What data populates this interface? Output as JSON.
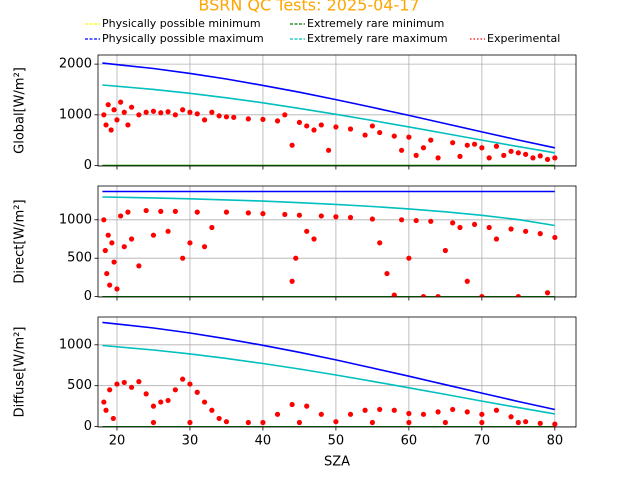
{
  "title": "BSRN QC Tests: 2025-04-17",
  "chart_data": [
    {
      "type": "scatter",
      "ylabel": "Global[W/m²]",
      "xlim": [
        17.4,
        82.9
      ],
      "xticks": [
        20,
        30,
        40,
        50,
        60,
        70,
        80
      ],
      "ylim": [
        -10,
        2180
      ],
      "yticks": [
        0,
        1000,
        2000
      ],
      "grid": true,
      "x": [
        18,
        25,
        30,
        35,
        40,
        45,
        50,
        55,
        60,
        65,
        70,
        75,
        80
      ],
      "series": [
        {
          "name": "Physically possible minimum",
          "color": "#ffff00",
          "values": [
            -4,
            -4,
            -4,
            -4,
            -4,
            -4,
            -4,
            -4,
            -4,
            -4,
            -4,
            -4,
            -4
          ]
        },
        {
          "name": "Physically possible maximum",
          "color": "#0000ff",
          "values": [
            2021,
            1913,
            1817,
            1706,
            1581,
            1446,
            1300,
            1147,
            988,
            826,
            663,
            503,
            349
          ]
        },
        {
          "name": "Extremely rare minimum",
          "color": "#008000",
          "values": [
            -2,
            -2,
            -2,
            -2,
            -2,
            -2,
            -2,
            -2,
            -2,
            -2,
            -2,
            -2,
            -2
          ]
        },
        {
          "name": "Extremely rare maximum",
          "color": "#00bfbf",
          "values": [
            1588,
            1501,
            1424,
            1335,
            1236,
            1127,
            1011,
            888,
            761,
            631,
            501,
            373,
            250
          ]
        },
        {
          "name": "Experimental",
          "color": "#ff0000",
          "marker": "o",
          "x": [
            18.2,
            18.5,
            18.8,
            19.2,
            19.6,
            20,
            20.5,
            21,
            21.5,
            22,
            23,
            24,
            25,
            26,
            27,
            28,
            29,
            30,
            31,
            32,
            33,
            34,
            35,
            36,
            38,
            40,
            42,
            43,
            44,
            45,
            46,
            47,
            48,
            49,
            50,
            52,
            54,
            55,
            56,
            58,
            59,
            60,
            61,
            62,
            63,
            64,
            66,
            67,
            68,
            69,
            70,
            71,
            72,
            73,
            74,
            75,
            76,
            77,
            78,
            79,
            80
          ],
          "values": [
            1000,
            800,
            1200,
            700,
            1100,
            900,
            1250,
            1050,
            800,
            1150,
            1000,
            1050,
            1070,
            1040,
            1060,
            1000,
            1100,
            1050,
            1020,
            900,
            1050,
            980,
            960,
            950,
            920,
            910,
            880,
            1000,
            400,
            850,
            780,
            700,
            800,
            300,
            760,
            720,
            600,
            780,
            650,
            580,
            300,
            560,
            200,
            350,
            500,
            150,
            450,
            180,
            400,
            420,
            350,
            150,
            380,
            200,
            280,
            250,
            220,
            150,
            190,
            120,
            150
          ]
        }
      ]
    },
    {
      "type": "scatter",
      "ylabel": "Direct[W/m²]",
      "xlim": [
        17.4,
        82.9
      ],
      "xticks": [
        20,
        30,
        40,
        50,
        60,
        70,
        80
      ],
      "ylim": [
        -5,
        1440
      ],
      "yticks": [
        0,
        500,
        1000
      ],
      "grid": true,
      "x": [
        18,
        25,
        30,
        35,
        40,
        45,
        50,
        55,
        60,
        65,
        70,
        75,
        80
      ],
      "series": [
        {
          "name": "Physically possible minimum",
          "color": "#ffff00",
          "values": [
            -4,
            -4,
            -4,
            -4,
            -4,
            -4,
            -4,
            -4,
            -4,
            -4,
            -4,
            -4,
            -4
          ]
        },
        {
          "name": "Physically possible maximum",
          "color": "#0000ff",
          "values": [
            1368,
            1368,
            1368,
            1368,
            1368,
            1368,
            1368,
            1368,
            1368,
            1368,
            1368,
            1368,
            1368
          ]
        },
        {
          "name": "Extremely rare minimum",
          "color": "#008000",
          "values": [
            -2,
            -2,
            -2,
            -2,
            -2,
            -2,
            -2,
            -2,
            -2,
            -2,
            -2,
            -2,
            -2
          ]
        },
        {
          "name": "Extremely rare maximum",
          "color": "#00bfbf",
          "values": [
            1297,
            1285,
            1273,
            1259,
            1243,
            1223,
            1200,
            1173,
            1142,
            1104,
            1059,
            1002,
            926
          ]
        },
        {
          "name": "Experimental",
          "color": "#ff0000",
          "marker": "o",
          "x": [
            18.2,
            18.4,
            18.6,
            18.8,
            19,
            19.3,
            19.6,
            20,
            20.5,
            21,
            21.5,
            22,
            23,
            24,
            25,
            26,
            27,
            28,
            29,
            30,
            31,
            32,
            33,
            35,
            38,
            40,
            43,
            44,
            44.5,
            45,
            46,
            47,
            48,
            50,
            52,
            55,
            56,
            57,
            58,
            59,
            60,
            61,
            62,
            63,
            64,
            65,
            66,
            67,
            68,
            69,
            70,
            71,
            72,
            74,
            75,
            76,
            78,
            79,
            80
          ],
          "values": [
            1000,
            600,
            300,
            800,
            150,
            700,
            450,
            100,
            1050,
            650,
            1100,
            750,
            400,
            1120,
            800,
            1110,
            850,
            1110,
            500,
            700,
            1100,
            650,
            900,
            1100,
            1090,
            1080,
            1070,
            200,
            500,
            1060,
            850,
            750,
            1050,
            1040,
            1030,
            1010,
            700,
            300,
            20,
            1000,
            500,
            990,
            0,
            980,
            0,
            600,
            960,
            900,
            200,
            940,
            0,
            900,
            750,
            880,
            0,
            850,
            820,
            50,
            770
          ]
        }
      ]
    },
    {
      "type": "scatter",
      "ylabel": "Diffuse[W/m²]",
      "xlabel": "SZA",
      "xlim": [
        17.4,
        82.9
      ],
      "xticks": [
        20,
        30,
        40,
        50,
        60,
        70,
        80
      ],
      "ylim": [
        -5,
        1340
      ],
      "yticks": [
        0,
        500,
        1000
      ],
      "grid": true,
      "x": [
        18,
        25,
        30,
        35,
        40,
        45,
        50,
        55,
        60,
        65,
        70,
        75,
        80
      ],
      "series": [
        {
          "name": "Physically possible minimum",
          "color": "#ffff00",
          "values": [
            -4,
            -4,
            -4,
            -4,
            -4,
            -4,
            -4,
            -4,
            -4,
            -4,
            -4,
            -4,
            -4
          ]
        },
        {
          "name": "Physically possible maximum",
          "color": "#0000ff",
          "values": [
            1274,
            1205,
            1144,
            1073,
            994,
            908,
            815,
            717,
            616,
            512,
            409,
            307,
            209
          ]
        },
        {
          "name": "Extremely rare minimum",
          "color": "#008000",
          "values": [
            -2,
            -2,
            -2,
            -2,
            -2,
            -2,
            -2,
            -2,
            -2,
            -2,
            -2,
            -2,
            -2
          ]
        },
        {
          "name": "Extremely rare maximum",
          "color": "#00bfbf",
          "values": [
            991,
            937,
            889,
            834,
            771,
            704,
            631,
            554,
            474,
            393,
            312,
            232,
            155
          ]
        },
        {
          "name": "Experimental",
          "color": "#ff0000",
          "marker": "o",
          "x": [
            18.2,
            18.5,
            19,
            19.5,
            20,
            21,
            22,
            23,
            24,
            25,
            26,
            27,
            28,
            29,
            30,
            31,
            32,
            33,
            34,
            35,
            38,
            40,
            42,
            44,
            46,
            48,
            50,
            52,
            54,
            56,
            58,
            60,
            62,
            64,
            66,
            68,
            70,
            72,
            74,
            76,
            78,
            80,
            25,
            30,
            45,
            55,
            60,
            65,
            70,
            75
          ],
          "values": [
            300,
            200,
            450,
            100,
            520,
            540,
            480,
            550,
            400,
            250,
            300,
            320,
            450,
            580,
            520,
            420,
            300,
            200,
            100,
            60,
            50,
            50,
            150,
            270,
            250,
            150,
            60,
            150,
            200,
            210,
            200,
            160,
            150,
            180,
            210,
            180,
            150,
            200,
            120,
            60,
            40,
            30,
            50,
            50,
            50,
            50,
            50,
            50,
            50,
            50
          ]
        }
      ]
    }
  ]
}
